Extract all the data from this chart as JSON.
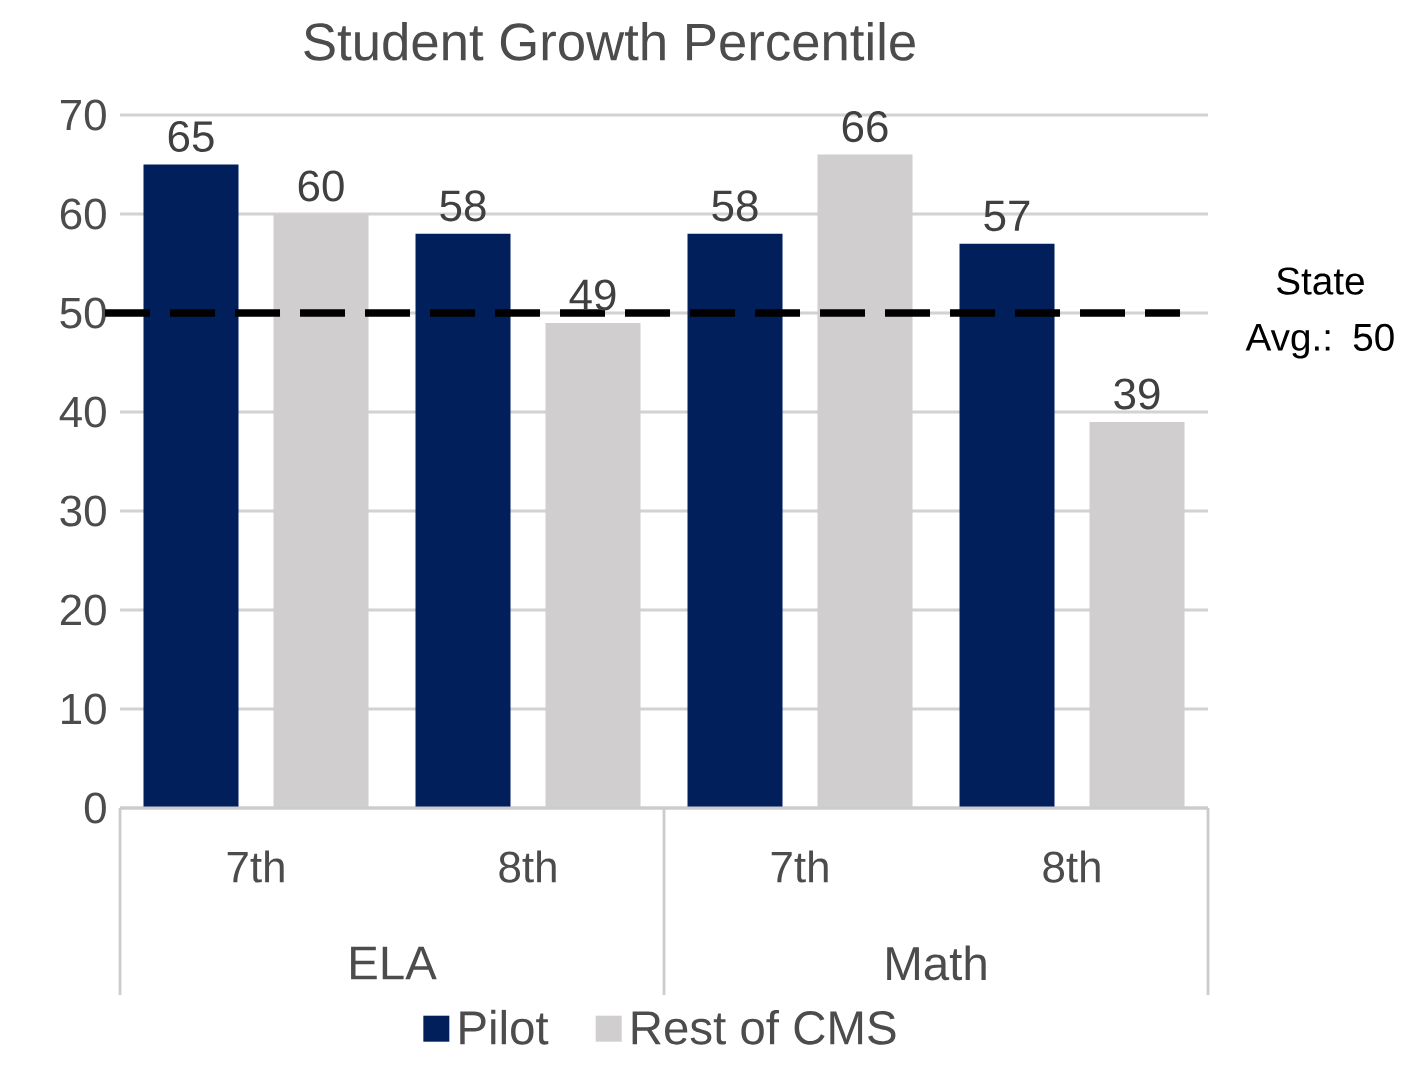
{
  "chart_data": {
    "type": "bar",
    "title": "Student Growth Percentile",
    "categories": [
      "7th",
      "8th",
      "7th",
      "8th"
    ],
    "annotations": [
      "ELA",
      "Math"
    ],
    "series": [
      {
        "name": "Pilot",
        "color": "#001f5b",
        "values": [
          65,
          58,
          58,
          57
        ]
      },
      {
        "name": "Rest of CMS",
        "color": "#d0cecf",
        "values": [
          60,
          49,
          66,
          39
        ]
      }
    ],
    "ylim": [
      0,
      70
    ],
    "yticks": [
      0,
      10,
      20,
      30,
      40,
      50,
      60,
      70
    ],
    "ref_lines": [
      {
        "axis": "y",
        "value": 50,
        "label": "State Avg.: 50",
        "color": "#000000",
        "line_style": "dashed"
      }
    ],
    "data_labels": true,
    "grid": "y",
    "legend": "bottom"
  }
}
